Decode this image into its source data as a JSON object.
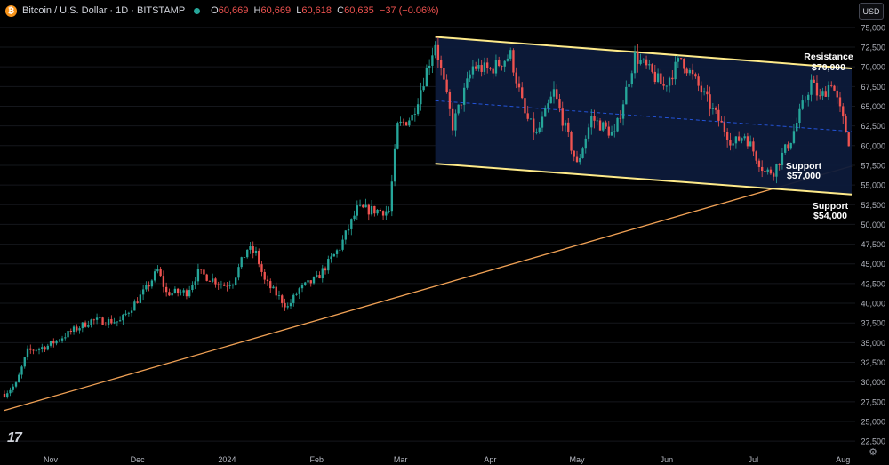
{
  "header": {
    "coin_icon": "bitcoin-icon",
    "symbol": "Bitcoin / U.S. Dollar · 1D · BITSTAMP",
    "open_label": "O",
    "open": "60,669",
    "high_label": "H",
    "high": "60,669",
    "low_label": "L",
    "low": "60,618",
    "close_label": "C",
    "close": "60,635",
    "change": "−37 (−0.06%)",
    "status_color": "#26a69a"
  },
  "currency_button": "USD",
  "logo_text": "17",
  "settings_icon": "gear-icon",
  "colors": {
    "up": "#26a69a",
    "down": "#ef5350",
    "channel": "#ffeb8a",
    "trendline": "#f0a155",
    "channel_fill": "#0d1a3a"
  },
  "chart_data": {
    "type": "candlestick",
    "title": "Bitcoin / U.S. Dollar · 1D · BITSTAMP",
    "y_axis": {
      "min": 21500,
      "max": 76000,
      "ticks": [
        22500,
        25000,
        27500,
        30000,
        32500,
        35000,
        37500,
        40000,
        42500,
        45000,
        47500,
        50000,
        52500,
        55000,
        57500,
        60000,
        62500,
        65000,
        67500,
        70000,
        72500,
        75000
      ]
    },
    "x_axis": {
      "ticks": [
        {
          "label": "Nov",
          "date": "2023-11-01"
        },
        {
          "label": "Dec",
          "date": "2023-12-01"
        },
        {
          "label": "2024",
          "date": "2024-01-01"
        },
        {
          "label": "Feb",
          "date": "2024-02-01"
        },
        {
          "label": "Mar",
          "date": "2024-03-01"
        },
        {
          "label": "Apr",
          "date": "2024-04-01"
        },
        {
          "label": "May",
          "date": "2024-05-01"
        },
        {
          "label": "Jun",
          "date": "2024-06-01"
        },
        {
          "label": "Jul",
          "date": "2024-07-01"
        },
        {
          "label": "Aug",
          "date": "2024-08-01"
        }
      ]
    },
    "date_range": [
      "2023-10-16",
      "2024-08-04"
    ],
    "close_path": [
      [
        "2023-10-16",
        28500
      ],
      [
        "2023-10-20",
        29700
      ],
      [
        "2023-10-24",
        33900
      ],
      [
        "2023-10-31",
        34600
      ],
      [
        "2023-11-09",
        36600
      ],
      [
        "2023-11-15",
        37800
      ],
      [
        "2023-11-25",
        37700
      ],
      [
        "2023-12-04",
        41800
      ],
      [
        "2023-12-08",
        44200
      ],
      [
        "2023-12-11",
        41300
      ],
      [
        "2023-12-18",
        41400
      ],
      [
        "2023-12-22",
        43900
      ],
      [
        "2023-12-31",
        42300
      ],
      [
        "2024-01-03",
        42800
      ],
      [
        "2024-01-08",
        46900
      ],
      [
        "2024-01-11",
        46300
      ],
      [
        "2024-01-14",
        42800
      ],
      [
        "2024-01-22",
        39500
      ],
      [
        "2024-01-26",
        41800
      ],
      [
        "2024-02-01",
        43100
      ],
      [
        "2024-02-09",
        47100
      ],
      [
        "2024-02-15",
        51900
      ],
      [
        "2024-02-26",
        51700
      ],
      [
        "2024-02-29",
        62400
      ],
      [
        "2024-03-05",
        63700
      ],
      [
        "2024-03-13",
        73100
      ],
      [
        "2024-03-19",
        62500
      ],
      [
        "2024-03-26",
        70000
      ],
      [
        "2024-04-01",
        69600
      ],
      [
        "2024-04-08",
        71500
      ],
      [
        "2024-04-13",
        63900
      ],
      [
        "2024-04-17",
        61300
      ],
      [
        "2024-04-23",
        66800
      ],
      [
        "2024-05-01",
        57500
      ],
      [
        "2024-05-06",
        63500
      ],
      [
        "2024-05-14",
        61300
      ],
      [
        "2024-05-21",
        71400
      ],
      [
        "2024-05-31",
        67500
      ],
      [
        "2024-06-06",
        71100
      ],
      [
        "2024-06-13",
        66900
      ],
      [
        "2024-06-24",
        60200
      ],
      [
        "2024-06-28",
        61400
      ],
      [
        "2024-07-05",
        56600
      ],
      [
        "2024-07-08",
        56800
      ],
      [
        "2024-07-14",
        60800
      ],
      [
        "2024-07-21",
        68100
      ],
      [
        "2024-07-24",
        65900
      ],
      [
        "2024-07-28",
        68200
      ],
      [
        "2024-08-03",
        60600
      ]
    ],
    "channel": {
      "upper": [
        [
          "2024-03-13",
          73800
        ],
        [
          "2024-08-04",
          69800
        ]
      ],
      "lower": [
        [
          "2024-03-13",
          57700
        ],
        [
          "2024-08-04",
          53800
        ]
      ],
      "midline": [
        [
          "2024-03-13",
          65700
        ],
        [
          "2024-08-04",
          61800
        ]
      ]
    },
    "trendline": [
      [
        "2023-10-16",
        26400
      ],
      [
        "2024-08-04",
        57400
      ]
    ],
    "annotations": [
      {
        "text": "Resistance",
        "subtext": "$70,000",
        "value": 70000
      },
      {
        "text": "Support",
        "subtext": "$57,000",
        "value": 57000
      },
      {
        "text": "Support",
        "subtext": "$54,000",
        "value": 54000
      }
    ]
  }
}
